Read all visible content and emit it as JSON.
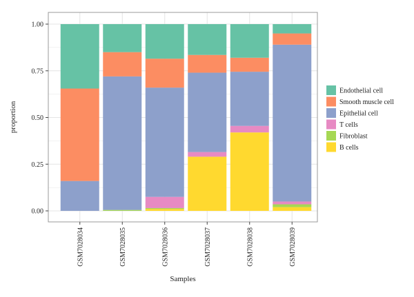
{
  "chart_data": {
    "type": "bar",
    "stacked": true,
    "title": "",
    "xlabel": "Samples",
    "ylabel": "proportion",
    "ylim": [
      0,
      1
    ],
    "yticks": [
      "0.00",
      "0.25",
      "0.50",
      "0.75",
      "1.00"
    ],
    "grid": true,
    "legend_position": "right",
    "categories": [
      "GSM7028034",
      "GSM7028035",
      "GSM7028036",
      "GSM7028037",
      "GSM7028038",
      "GSM7028039"
    ],
    "series": [
      {
        "name": "B cells",
        "color": "#ffd92f",
        "values": [
          0.0,
          0.0,
          0.01,
          0.29,
          0.42,
          0.02
        ]
      },
      {
        "name": "Fibroblast",
        "color": "#a6d854",
        "values": [
          0.0,
          0.005,
          0.005,
          0.0,
          0.0,
          0.015
        ]
      },
      {
        "name": "T cells",
        "color": "#e78ac3",
        "values": [
          0.0,
          0.0,
          0.06,
          0.025,
          0.035,
          0.015
        ]
      },
      {
        "name": "Epithelial cell",
        "color": "#8da0cb",
        "values": [
          0.16,
          0.715,
          0.585,
          0.425,
          0.29,
          0.84
        ]
      },
      {
        "name": "Smooth muscle cell",
        "color": "#fc8d62",
        "values": [
          0.495,
          0.13,
          0.155,
          0.095,
          0.075,
          0.06
        ]
      },
      {
        "name": "Endothelial cell",
        "color": "#66c2a5",
        "values": [
          0.345,
          0.15,
          0.185,
          0.165,
          0.18,
          0.05
        ]
      }
    ],
    "legend_order": [
      "Endothelial cell",
      "Smooth muscle cell",
      "Epithelial cell",
      "T cells",
      "Fibroblast",
      "B cells"
    ]
  }
}
